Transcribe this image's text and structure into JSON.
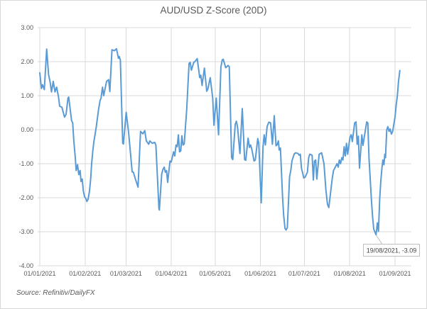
{
  "chart_data": {
    "type": "line",
    "title": "AUD/USD Z-Score (20D)",
    "source_note": "Source: Refinitiv/DailyFX",
    "legend": "none",
    "grid": true,
    "x_axis": {
      "label": "",
      "tick_labels": [
        "01/01/2021",
        "01/02/2021",
        "01/03/2021",
        "01/04/2021",
        "01/05/2021",
        "01/06/2021",
        "01/07/2021",
        "01/08/2021",
        "01/09/2021"
      ],
      "tick_days": [
        0,
        31,
        59,
        90,
        120,
        151,
        181,
        212,
        243
      ],
      "domain_days": [
        0,
        246.3
      ]
    },
    "y_axis": {
      "label": "",
      "tick_labels": [
        "3.00",
        "2.00",
        "1.00",
        "0.00",
        "-1.00",
        "-2.00",
        "-3.00",
        "-4.00"
      ],
      "tick_values": [
        3,
        2,
        1,
        0,
        -1,
        -2,
        -3,
        -4
      ],
      "ylim": [
        -4,
        3
      ]
    },
    "annotation": {
      "label": "19/08/2021, -3.09",
      "date": "19/08/2021",
      "day": 230,
      "value": -3.09
    },
    "colors": {
      "line": "#5B9BD5",
      "gridline": "#D9D9D9",
      "axis_text": "#595959",
      "title_text": "#595959",
      "annotation_border": "#BFBFBF",
      "annotation_text": "#404040"
    },
    "series": [
      {
        "name": "AUD/USD Z-Score (20D)",
        "color": "#5B9BD5",
        "points": [
          [
            0,
            1.67
          ],
          [
            1.1,
            1.21
          ],
          [
            1.9,
            1.32
          ],
          [
            3.1,
            1.18
          ],
          [
            4.7,
            2.37
          ],
          [
            6,
            1.63
          ],
          [
            7.1,
            1.39
          ],
          [
            8,
            1.11
          ],
          [
            9.2,
            1.42
          ],
          [
            10.4,
            1.11
          ],
          [
            11.5,
            1.25
          ],
          [
            12.8,
            0.97
          ],
          [
            13.6,
            0.69
          ],
          [
            15.1,
            0.66
          ],
          [
            16.9,
            0.37
          ],
          [
            18,
            0.45
          ],
          [
            19.3,
            0.93
          ],
          [
            19.8,
            0.96
          ],
          [
            21.7,
            0.27
          ],
          [
            22.5,
            0.2
          ],
          [
            23.3,
            -0.33
          ],
          [
            24.2,
            -0.78
          ],
          [
            24.9,
            -1.2
          ],
          [
            25.8,
            -1.03
          ],
          [
            26.7,
            -1.32
          ],
          [
            27.6,
            -1.2
          ],
          [
            28.2,
            -1.52
          ],
          [
            29,
            -1.45
          ],
          [
            29.8,
            -1.8
          ],
          [
            30.6,
            -1.97
          ],
          [
            31.6,
            -2.03
          ],
          [
            32.2,
            -2.11
          ],
          [
            33,
            -2.05
          ],
          [
            34,
            -1.8
          ],
          [
            34.8,
            -1.45
          ],
          [
            35.5,
            -0.99
          ],
          [
            36.3,
            -0.61
          ],
          [
            37.1,
            -0.33
          ],
          [
            37.9,
            -0.12
          ],
          [
            38.7,
            0.1
          ],
          [
            39.5,
            0.37
          ],
          [
            40.3,
            0.62
          ],
          [
            41.2,
            0.85
          ],
          [
            41.9,
            0.93
          ],
          [
            42.9,
            1.25
          ],
          [
            43.7,
            1.0
          ],
          [
            45.7,
            1.42
          ],
          [
            47.1,
            1.47
          ],
          [
            47.9,
            1.12
          ],
          [
            49.4,
            2.35
          ],
          [
            51,
            2.32
          ],
          [
            52.5,
            2.38
          ],
          [
            53.8,
            2.1
          ],
          [
            54.4,
            2.15
          ],
          [
            55.1,
            2.05
          ],
          [
            56.7,
            -0.4
          ],
          [
            57.2,
            -0.42
          ],
          [
            59.1,
            0.51
          ],
          [
            60.8,
            -0.1
          ],
          [
            63.2,
            -1.24
          ],
          [
            64,
            -1.25
          ],
          [
            65.6,
            -1.48
          ],
          [
            67.2,
            -1.69
          ],
          [
            68.9,
            -0.05
          ],
          [
            70.5,
            -0.12
          ],
          [
            71.8,
            -0.03
          ],
          [
            72.9,
            -0.33
          ],
          [
            74.5,
            -0.43
          ],
          [
            75.3,
            -0.33
          ],
          [
            77,
            -0.4
          ],
          [
            78.6,
            -0.37
          ],
          [
            79.4,
            -0.45
          ],
          [
            81.5,
            -2.32
          ],
          [
            81.8,
            -2.36
          ],
          [
            83.4,
            -1.3
          ],
          [
            84.2,
            -1.17
          ],
          [
            85.1,
            -1.1
          ],
          [
            85.9,
            -1.25
          ],
          [
            86.7,
            -1.2
          ],
          [
            87.5,
            -1.55
          ],
          [
            89.1,
            -0.92
          ],
          [
            89.9,
            -0.95
          ],
          [
            91.5,
            -0.65
          ],
          [
            92.3,
            -0.77
          ],
          [
            93.2,
            -0.45
          ],
          [
            94,
            -0.5
          ],
          [
            94.8,
            -0.15
          ],
          [
            95.6,
            -0.65
          ],
          [
            96.4,
            -0.62
          ],
          [
            97.2,
            -0.18
          ],
          [
            98,
            -0.45
          ],
          [
            98.8,
            -0.42
          ],
          [
            100.5,
            0.6
          ],
          [
            102.1,
            1.95
          ],
          [
            102.9,
            1.98
          ],
          [
            103.7,
            1.75
          ],
          [
            105.3,
            1.98
          ],
          [
            106.1,
            2.0
          ],
          [
            107.7,
            2.09
          ],
          [
            109.4,
            1.53
          ],
          [
            110.2,
            1.6
          ],
          [
            111,
            1.3
          ],
          [
            112.6,
            1.81
          ],
          [
            114.2,
            1.13
          ],
          [
            115,
            1.2
          ],
          [
            116.6,
            1.53
          ],
          [
            118.3,
            0.93
          ],
          [
            119.1,
            0.13
          ],
          [
            120.7,
            0.93
          ],
          [
            122.3,
            -0.15
          ],
          [
            123.9,
            1.84
          ],
          [
            124.8,
            2.05
          ],
          [
            125.5,
            2.07
          ],
          [
            127.2,
            1.82
          ],
          [
            128.8,
            1.89
          ],
          [
            129.6,
            1.85
          ],
          [
            131.2,
            -0.82
          ],
          [
            132,
            -0.88
          ],
          [
            133.7,
            0.16
          ],
          [
            134.5,
            0.25
          ],
          [
            135.3,
            0.06
          ],
          [
            136.9,
            -0.7
          ],
          [
            138.5,
            0.62
          ],
          [
            140.1,
            -0.88
          ],
          [
            140.9,
            -0.9
          ],
          [
            142.5,
            -0.25
          ],
          [
            143.4,
            -0.52
          ],
          [
            144.2,
            -0.45
          ],
          [
            145,
            -0.57
          ],
          [
            146.6,
            -0.92
          ],
          [
            147.4,
            -0.89
          ],
          [
            149.1,
            -0.26
          ],
          [
            149.8,
            -0.4
          ],
          [
            151.5,
            -2.15
          ],
          [
            152.7,
            -0.5
          ],
          [
            153.5,
            -0.15
          ],
          [
            154.3,
            -0.45
          ],
          [
            155.5,
            0.1
          ],
          [
            156.7,
            0.22
          ],
          [
            157.9,
            0.2
          ],
          [
            159.1,
            -0.43
          ],
          [
            160.4,
            0.41
          ],
          [
            161.6,
            -0.47
          ],
          [
            162.4,
            -0.44
          ],
          [
            163.2,
            -0.33
          ],
          [
            163.8,
            -0.6
          ],
          [
            164.6,
            -0.54
          ],
          [
            166,
            -1.94
          ],
          [
            166.8,
            -2.5
          ],
          [
            167.7,
            -2.9
          ],
          [
            168.5,
            -2.95
          ],
          [
            169.3,
            -2.88
          ],
          [
            170.9,
            -1.38
          ],
          [
            171.7,
            -1.2
          ],
          [
            172.5,
            -0.92
          ],
          [
            174.1,
            -0.71
          ],
          [
            174.9,
            -0.68
          ],
          [
            176.6,
            -0.7
          ],
          [
            177.4,
            -0.75
          ],
          [
            178.2,
            -0.72
          ],
          [
            179,
            -1.13
          ],
          [
            180.6,
            -1.42
          ],
          [
            181.4,
            -1.4
          ],
          [
            183.1,
            -1.25
          ],
          [
            183.9,
            -0.83
          ],
          [
            184.7,
            -0.72
          ],
          [
            186.3,
            -0.75
          ],
          [
            187.1,
            -1.48
          ],
          [
            187.9,
            -0.92
          ],
          [
            188.7,
            -0.89
          ],
          [
            189.5,
            -1.45
          ],
          [
            191.1,
            -0.72
          ],
          [
            192.8,
            -0.68
          ],
          [
            194.4,
            -1.0
          ],
          [
            195.7,
            -1.77
          ],
          [
            196.8,
            -2.19
          ],
          [
            197.7,
            -2.29
          ],
          [
            200.1,
            -1.42
          ],
          [
            200.9,
            -1.2
          ],
          [
            201.7,
            -1.14
          ],
          [
            203.3,
            -1.0
          ],
          [
            204.1,
            -1.1
          ],
          [
            204.9,
            -0.89
          ],
          [
            205.7,
            -1.0
          ],
          [
            206.6,
            -0.82
          ],
          [
            207.4,
            -0.89
          ],
          [
            208.2,
            -0.5
          ],
          [
            209,
            -0.77
          ],
          [
            209.8,
            -0.4
          ],
          [
            210.6,
            -0.72
          ],
          [
            212.2,
            -0.22
          ],
          [
            213,
            -0.15
          ],
          [
            213.8,
            -0.35
          ],
          [
            215.4,
            0.2
          ],
          [
            216.3,
            0.23
          ],
          [
            217.1,
            -0.43
          ],
          [
            217.9,
            -0.19
          ],
          [
            218.7,
            -1.13
          ],
          [
            220.3,
            -0.15
          ],
          [
            221.1,
            -0.46
          ],
          [
            223.6,
            0.23
          ],
          [
            224.4,
            0.2
          ],
          [
            225.2,
            -0.85
          ],
          [
            226,
            -1.42
          ],
          [
            226.8,
            -2.04
          ],
          [
            227.6,
            -2.53
          ],
          [
            228.4,
            -2.92
          ],
          [
            230,
            -3.09
          ],
          [
            230.9,
            -2.74
          ],
          [
            231.7,
            -2.99
          ],
          [
            232.5,
            -2.04
          ],
          [
            233.3,
            -1.5
          ],
          [
            234.1,
            -1.1
          ],
          [
            234.7,
            -0.89
          ],
          [
            235.4,
            -1.03
          ],
          [
            236,
            -0.72
          ],
          [
            236.5,
            -0.82
          ],
          [
            237.3,
            -0.01
          ],
          [
            238.1,
            0.09
          ],
          [
            238.9,
            -0.05
          ],
          [
            239.7,
            0.02
          ],
          [
            240.5,
            -0.13
          ],
          [
            241.4,
            -0.05
          ],
          [
            243,
            0.37
          ],
          [
            243.8,
            0.72
          ],
          [
            244.6,
            1.0
          ],
          [
            245.4,
            1.42
          ],
          [
            246.3,
            1.74
          ]
        ]
      }
    ]
  }
}
